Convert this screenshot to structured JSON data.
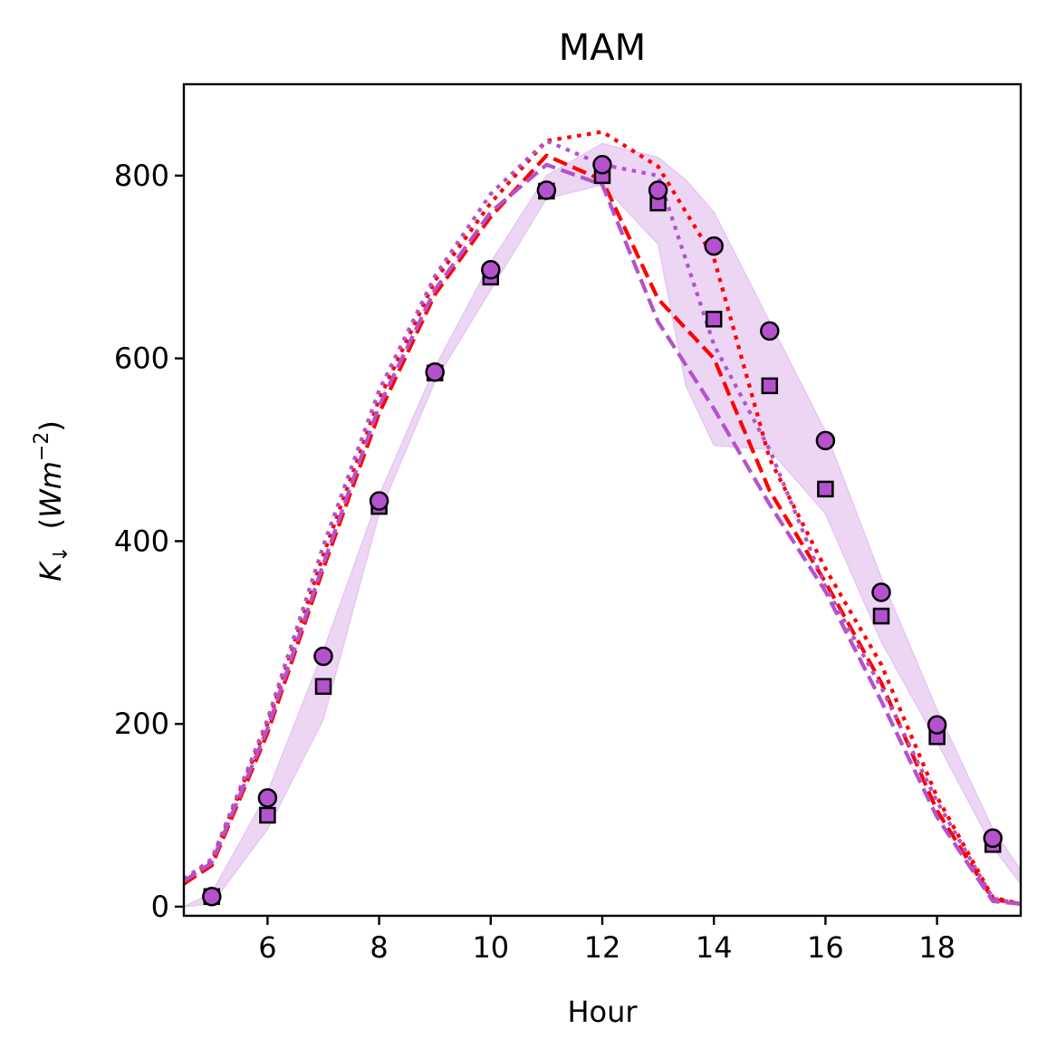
{
  "chart_data": {
    "type": "line",
    "title": "MAM",
    "xlabel": "Hour",
    "ylabel_parts": {
      "symbol": "K",
      "subscript": "↓",
      "unit_open": "(",
      "unit": "Wm",
      "exponent": "−2",
      "unit_close": ")"
    },
    "xlim": [
      4.5,
      19.5
    ],
    "ylim": [
      -10,
      900
    ],
    "xticks": [
      6,
      8,
      10,
      12,
      14,
      16,
      18
    ],
    "yticks": [
      0,
      200,
      400,
      600,
      800
    ],
    "grid": false,
    "colors": {
      "red": "#ff0000",
      "purple": "#b452cd",
      "band": "#e5c8f0",
      "marker_edge": "#000000"
    },
    "band": {
      "x": [
        4.5,
        5,
        6,
        7,
        8,
        9,
        10,
        11,
        12,
        13,
        13.5,
        14,
        15,
        16,
        17,
        18,
        19,
        19.5
      ],
      "lower": [
        0,
        3,
        85,
        205,
        430,
        575,
        675,
        775,
        790,
        725,
        570,
        505,
        500,
        430,
        290,
        180,
        65,
        25
      ],
      "upper": [
        0,
        15,
        125,
        280,
        450,
        590,
        705,
        800,
        835,
        820,
        795,
        760,
        640,
        520,
        360,
        215,
        85,
        40
      ]
    },
    "series": [
      {
        "style": "dashed",
        "color": "red",
        "x": [
          4.5,
          5,
          6,
          7,
          8,
          9,
          10,
          11,
          12,
          13,
          14,
          15,
          16,
          17,
          18,
          19,
          19.5
        ],
        "values": [
          25,
          45,
          190,
          370,
          540,
          670,
          755,
          822,
          795,
          665,
          600,
          455,
          355,
          245,
          105,
          8,
          3
        ]
      },
      {
        "style": "dotted",
        "color": "red",
        "x": [
          4.5,
          5,
          6,
          7,
          8,
          9,
          10,
          11,
          12,
          13,
          14,
          15,
          16,
          17,
          18,
          19,
          19.5
        ],
        "values": [
          28,
          50,
          200,
          385,
          555,
          685,
          770,
          838,
          848,
          810,
          710,
          490,
          370,
          265,
          120,
          10,
          3
        ]
      },
      {
        "style": "dashed",
        "color": "purple",
        "x": [
          4.5,
          5,
          6,
          7,
          8,
          9,
          10,
          11,
          12,
          13,
          14,
          15,
          16,
          17,
          18,
          19,
          19.5
        ],
        "values": [
          28,
          48,
          195,
          375,
          548,
          675,
          760,
          812,
          790,
          640,
          545,
          440,
          345,
          225,
          98,
          6,
          3
        ]
      },
      {
        "style": "dotted",
        "color": "purple",
        "x": [
          4.5,
          5,
          6,
          7,
          8,
          9,
          10,
          11,
          12,
          13,
          14,
          15,
          16,
          17,
          18,
          19,
          19.5
        ],
        "values": [
          30,
          52,
          205,
          395,
          565,
          690,
          780,
          838,
          812,
          800,
          615,
          500,
          350,
          240,
          115,
          9,
          3
        ]
      }
    ],
    "points_circle": {
      "x": [
        5,
        6,
        7,
        8,
        9,
        10,
        11,
        12,
        13,
        14,
        15,
        16,
        17,
        18,
        19
      ],
      "values": [
        11,
        119,
        274,
        444,
        585,
        697,
        784,
        812,
        784,
        723,
        630,
        510,
        344,
        199,
        75
      ]
    },
    "points_square": {
      "x": [
        5,
        6,
        7,
        8,
        9,
        10,
        11,
        12,
        13,
        14,
        15,
        16,
        17,
        18,
        19
      ],
      "values": [
        11,
        100,
        241,
        438,
        584,
        689,
        783,
        800,
        770,
        643,
        570,
        457,
        318,
        186,
        68
      ]
    }
  }
}
